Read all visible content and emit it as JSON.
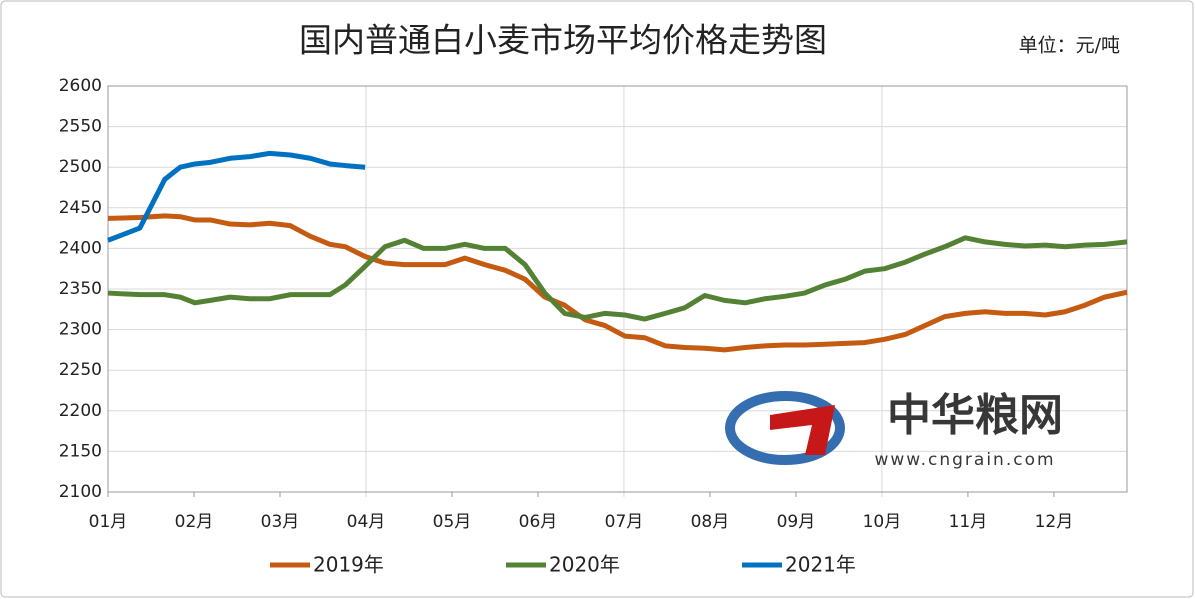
{
  "chart_data": {
    "type": "line",
    "title": "国内普通白小麦市场平均价格走势图",
    "unit_label": "单位：元/吨",
    "watermark": {
      "name": "中华粮网",
      "url": "www.cngrain.com"
    },
    "x": [
      0,
      0.37,
      0.66,
      0.84,
      1.01,
      1.19,
      1.42,
      1.65,
      1.88,
      2.12,
      2.35,
      2.58,
      2.76,
      2.99,
      3.22,
      3.45,
      3.67,
      3.92,
      4.15,
      4.38,
      4.62,
      4.85,
      5.08,
      5.31,
      5.55,
      5.78,
      6.01,
      6.24,
      6.48,
      6.71,
      6.94,
      7.17,
      7.41,
      7.64,
      7.87,
      8.1,
      8.34,
      8.57,
      8.8,
      9.03,
      9.27,
      9.5,
      9.73,
      9.97,
      10.2,
      10.43,
      10.66,
      10.9,
      11.13,
      11.36,
      11.59,
      11.85
    ],
    "series": [
      {
        "name": "2019年",
        "color": "#c55a11",
        "values": [
          2437,
          2438,
          2440,
          2439,
          2435,
          2435,
          2430,
          2429,
          2431,
          2428,
          2415,
          2405,
          2402,
          2390,
          2382,
          2380,
          2380,
          2380,
          2388,
          2380,
          2373,
          2362,
          2340,
          2330,
          2312,
          2305,
          2292,
          2290,
          2280,
          2278,
          2277,
          2275,
          2278,
          2280,
          2281,
          2281,
          2282,
          2283,
          2284,
          2288,
          2294,
          2305,
          2316,
          2320,
          2322,
          2320,
          2320,
          2318,
          2322,
          2330,
          2340,
          2346
        ]
      },
      {
        "name": "2020年",
        "color": "#548235",
        "values": [
          2345,
          2343,
          2343,
          2340,
          2333,
          2336,
          2340,
          2338,
          2338,
          2343,
          2343,
          2343,
          2355,
          2378,
          2402,
          2410,
          2400,
          2400,
          2405,
          2400,
          2400,
          2380,
          2345,
          2320,
          2315,
          2320,
          2318,
          2313,
          2320,
          2327,
          2342,
          2336,
          2333,
          2338,
          2341,
          2345,
          2355,
          2362,
          2372,
          2375,
          2383,
          2393,
          2402,
          2413,
          2408,
          2405,
          2403,
          2404,
          2402,
          2404,
          2405,
          2408
        ]
      },
      {
        "name": "2021年",
        "color": "#0070c0",
        "values": [
          2410,
          2425,
          2485,
          2500,
          2504,
          2506,
          2511,
          2513,
          2517,
          2515,
          2511,
          2504,
          2502,
          2500,
          null,
          null,
          null,
          null,
          null,
          null,
          null,
          null,
          null,
          null,
          null,
          null,
          null,
          null,
          null,
          null,
          null,
          null,
          null,
          null,
          null,
          null,
          null,
          null,
          null,
          null,
          null,
          null,
          null,
          null,
          null,
          null,
          null,
          null,
          null,
          null,
          null,
          null
        ]
      }
    ],
    "xlim": [
      0,
      11.85
    ],
    "xticks": [
      {
        "value": 0,
        "label": "01月"
      },
      {
        "value": 1,
        "label": "02月"
      },
      {
        "value": 2,
        "label": "03月"
      },
      {
        "value": 3,
        "label": "04月"
      },
      {
        "value": 4,
        "label": "05月"
      },
      {
        "value": 5,
        "label": "06月"
      },
      {
        "value": 6,
        "label": "07月"
      },
      {
        "value": 7,
        "label": "08月"
      },
      {
        "value": 8,
        "label": "09月"
      },
      {
        "value": 9,
        "label": "10月"
      },
      {
        "value": 10,
        "label": "11月"
      },
      {
        "value": 11,
        "label": "12月"
      }
    ],
    "xgrid_every": 3,
    "ylim": [
      2100,
      2600
    ],
    "yticks": [
      2100,
      2150,
      2200,
      2250,
      2300,
      2350,
      2400,
      2450,
      2500,
      2550,
      2600
    ],
    "grid": true,
    "legend": "bottom"
  }
}
